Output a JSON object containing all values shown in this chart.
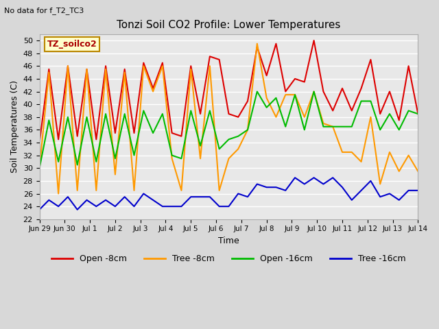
{
  "title": "Tonzi Soil CO2 Profile: Lower Temperatures",
  "subtitle": "No data for f_T2_TC3",
  "ylabel": "Soil Temperatures (C)",
  "xlabel": "Time",
  "ylim": [
    22,
    51
  ],
  "yticks": [
    22,
    24,
    26,
    28,
    30,
    32,
    34,
    36,
    38,
    40,
    42,
    44,
    46,
    48,
    50
  ],
  "legend_label": "TZ_soilco2",
  "x_labels": [
    "Jun 29",
    "Jun 30",
    "Jul 1",
    "Jul 2",
    "Jul 3",
    "Jul 4",
    "Jul 5",
    "Jul 6",
    "Jul 7",
    "Jul 8",
    "Jul 9",
    "Jul 10",
    "Jul 11",
    "Jul 12",
    "Jul 13",
    "Jul 14"
  ],
  "open_8cm_color": "#dd0000",
  "tree_8cm_color": "#ff9900",
  "open_16cm_color": "#00bb00",
  "tree_16cm_color": "#0000cc",
  "open_8cm": [
    34.0,
    45.5,
    34.5,
    46.0,
    35.0,
    45.5,
    34.5,
    46.0,
    35.5,
    45.5,
    35.5,
    46.5,
    42.5,
    46.5,
    35.5,
    35.0,
    46.0,
    38.5,
    47.5,
    47.0,
    38.5,
    38.0,
    40.5,
    49.0,
    44.5,
    49.5,
    42.0,
    44.0,
    43.5,
    50.0,
    42.0,
    39.0,
    42.5,
    39.0,
    42.5,
    47.0,
    38.5,
    42.0,
    37.5,
    46.0,
    38.5
  ],
  "tree_8cm": [
    30.0,
    45.0,
    26.0,
    46.0,
    26.5,
    45.5,
    26.5,
    45.5,
    29.0,
    45.0,
    26.5,
    46.0,
    42.0,
    46.0,
    31.5,
    26.5,
    45.5,
    31.5,
    46.0,
    26.5,
    31.5,
    33.0,
    36.0,
    49.5,
    41.0,
    38.0,
    41.5,
    41.5,
    38.0,
    42.0,
    37.0,
    36.5,
    32.5,
    32.5,
    31.0,
    38.0,
    27.5,
    32.5,
    29.5,
    32.0,
    29.5
  ],
  "open_16cm": [
    30.0,
    37.5,
    31.0,
    38.0,
    30.5,
    38.0,
    31.0,
    38.5,
    31.5,
    38.5,
    32.0,
    39.0,
    35.5,
    38.5,
    32.0,
    31.5,
    39.0,
    33.5,
    39.0,
    33.0,
    34.5,
    35.0,
    36.0,
    42.0,
    39.5,
    41.0,
    36.5,
    41.5,
    36.0,
    42.0,
    36.5,
    36.5,
    36.5,
    36.5,
    40.5,
    40.5,
    36.0,
    38.5,
    36.0,
    39.0,
    38.5
  ],
  "tree_16cm": [
    23.5,
    25.0,
    24.0,
    25.5,
    23.5,
    25.0,
    24.0,
    25.0,
    24.0,
    25.5,
    24.0,
    26.0,
    25.0,
    24.0,
    24.0,
    24.0,
    25.5,
    25.5,
    25.5,
    24.0,
    24.0,
    26.0,
    25.5,
    27.5,
    27.0,
    27.0,
    26.5,
    28.5,
    27.5,
    28.5,
    27.5,
    28.5,
    27.0,
    25.0,
    26.5,
    28.0,
    25.5,
    26.0,
    25.0,
    26.5,
    26.5
  ]
}
